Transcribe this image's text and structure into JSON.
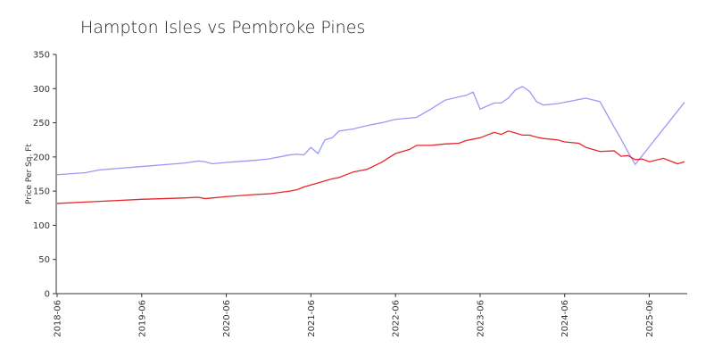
{
  "chart_data": {
    "type": "line",
    "title": "Hampton Isles vs Pembroke Pines",
    "ylabel": "Price Per Sq. Ft",
    "x": [
      "2018-06",
      "2018-10",
      "2018-12",
      "2019-06",
      "2019-12",
      "2020-02",
      "2020-03",
      "2020-04",
      "2020-06",
      "2020-10",
      "2020-12",
      "2021-03",
      "2021-04",
      "2021-05",
      "2021-06",
      "2021-07",
      "2021-08",
      "2021-09",
      "2021-10",
      "2021-12",
      "2022-02",
      "2022-04",
      "2022-06",
      "2022-08",
      "2022-09",
      "2022-11",
      "2023-01",
      "2023-03",
      "2023-04",
      "2023-05",
      "2023-06",
      "2023-08",
      "2023-09",
      "2023-10",
      "2023-11",
      "2023-12",
      "2024-01",
      "2024-02",
      "2024-03",
      "2024-05",
      "2024-06",
      "2024-08",
      "2024-09",
      "2024-11",
      "2025-01",
      "2025-02",
      "2025-03",
      "2025-04",
      "2025-05",
      "2025-06",
      "2025-08",
      "2025-10",
      "2025-11"
    ],
    "series": [
      {
        "color": "#9a9af5",
        "values": [
          174,
          177,
          181,
          186,
          191,
          194,
          193,
          190,
          192,
          195,
          197,
          203,
          204,
          203,
          214,
          205,
          225,
          228,
          238,
          241,
          246,
          250,
          255,
          257,
          258,
          270,
          283,
          288,
          290,
          295,
          270,
          279,
          279,
          286,
          298,
          303,
          296,
          281,
          276,
          278,
          280,
          284,
          286,
          281,
          244,
          226,
          207,
          189,
          202,
          215,
          241,
          267,
          280
        ]
      },
      {
        "color": "#e8262a",
        "values": [
          132,
          134,
          135,
          138,
          140,
          141,
          139,
          140,
          142,
          145,
          146,
          150,
          152,
          156,
          159,
          162,
          165,
          168,
          170,
          178,
          182,
          192,
          205,
          211,
          217,
          217,
          219,
          220,
          224,
          226,
          228,
          236,
          233,
          238,
          235,
          232,
          232,
          229,
          227,
          225,
          222,
          220,
          214,
          208,
          209,
          201,
          202,
          196,
          197,
          193,
          198,
          190,
          193
        ]
      }
    ],
    "xlim": [
      "2018-06",
      "2025-11"
    ],
    "xticks": [
      "2018-06",
      "2019-06",
      "2020-06",
      "2021-06",
      "2022-06",
      "2023-06",
      "2024-06",
      "2025-06"
    ],
    "ylim": [
      0,
      350
    ],
    "yticks": [
      0,
      50,
      100,
      150,
      200,
      250,
      300,
      350
    ],
    "grid": false
  }
}
